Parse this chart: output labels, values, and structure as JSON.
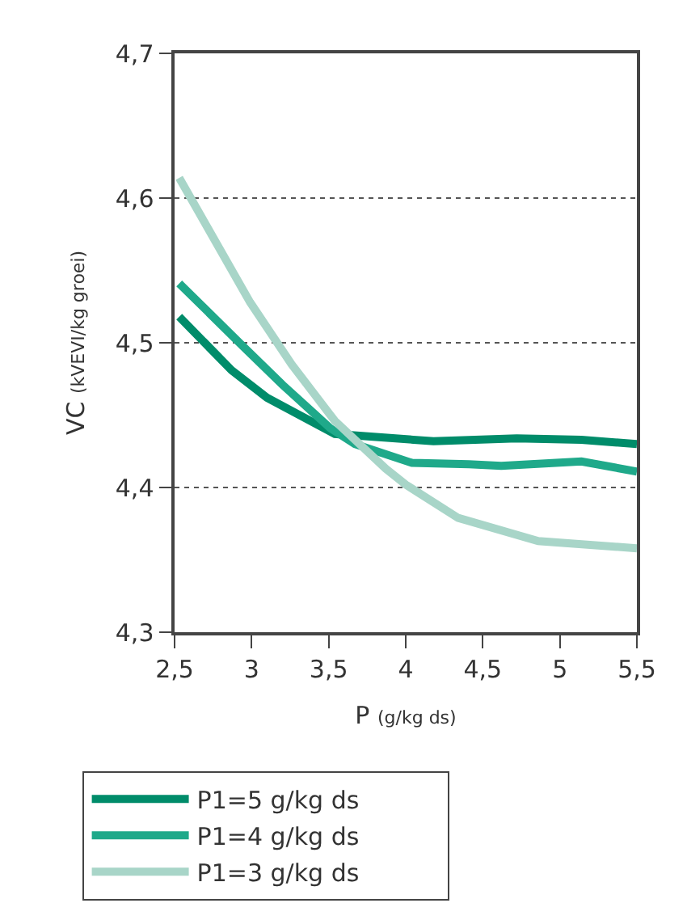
{
  "chart_data": {
    "type": "line",
    "xlabel": "P (g/kg ds)",
    "ylabel": "VC (kVEVI/kg groei)",
    "xlim": [
      2.5,
      5.5
    ],
    "ylim": [
      4.3,
      4.7
    ],
    "xticks": [
      {
        "value": 2.5,
        "label": "2,5"
      },
      3,
      {
        "value": 3.5,
        "label": "3,5"
      },
      4,
      {
        "value": 4.5,
        "label": "4,5"
      },
      5,
      {
        "value": 5.5,
        "label": "5,5"
      }
    ],
    "yticks": [
      {
        "value": 4.3,
        "label": "4,3"
      },
      {
        "value": 4.4,
        "label": "4,4"
      },
      {
        "value": 4.5,
        "label": "4,5"
      },
      {
        "value": 4.6,
        "label": "4,6"
      },
      {
        "value": 4.7,
        "label": "4,7"
      }
    ],
    "grid": "y",
    "legend": "bottom",
    "marker": "none",
    "line_style": "solid",
    "series": [
      {
        "name": "P1=5 g/kg ds",
        "color": "#008c6a",
        "x": [
          2.53,
          2.87,
          3.1,
          3.54,
          4.18,
          4.72,
          5.14,
          5.5
        ],
        "values": [
          4.518,
          4.481,
          4.462,
          4.437,
          4.432,
          4.434,
          4.433,
          4.43
        ]
      },
      {
        "name": "P1=4 g/kg ds",
        "color": "#1fa98a",
        "x": [
          2.53,
          2.94,
          3.2,
          3.51,
          3.67,
          4.04,
          4.41,
          4.62,
          5.14,
          5.5
        ],
        "values": [
          4.541,
          4.498,
          4.471,
          4.441,
          4.43,
          4.417,
          4.416,
          4.415,
          4.418,
          4.411
        ]
      },
      {
        "name": "P1=3 g/kg ds",
        "color": "#a8d5c8",
        "x": [
          2.53,
          2.99,
          3.26,
          3.54,
          3.87,
          4.0,
          4.34,
          4.86,
          5.5
        ],
        "values": [
          4.614,
          4.528,
          4.485,
          4.446,
          4.413,
          4.402,
          4.379,
          4.363,
          4.358
        ]
      }
    ]
  }
}
